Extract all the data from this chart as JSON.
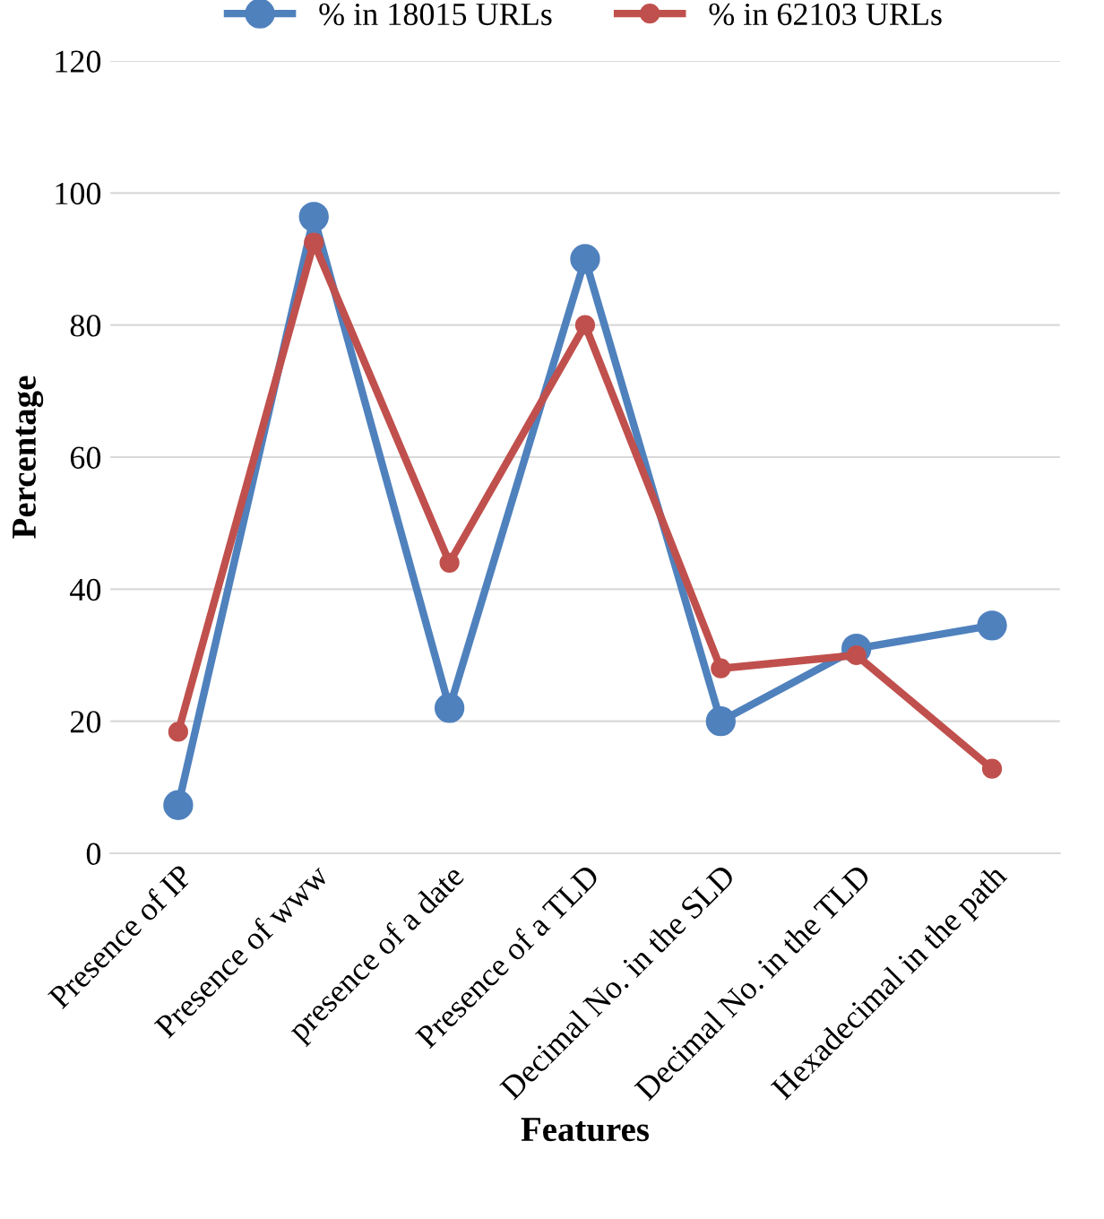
{
  "chart_data": {
    "type": "line",
    "xlabel": "Features",
    "ylabel": "Percentage",
    "categories": [
      "Presence of IP",
      "Presence of www",
      "presence of a date",
      "Presence of a TLD",
      "Decimal No. in the SLD",
      "Decimal No. in the TLD",
      "Hexadecimal in the path"
    ],
    "series": [
      {
        "name": "% in 18015 URLs",
        "color": "#4f81bd",
        "values": [
          7.3,
          96.4,
          22,
          90,
          20,
          31,
          34.5
        ]
      },
      {
        "name": "% in 62103 URLs",
        "color": "#c0504d",
        "values": [
          18.4,
          92.5,
          44,
          80,
          28,
          30,
          12.8
        ]
      }
    ],
    "ylim": [
      0,
      120
    ],
    "yticks": [
      0,
      20,
      40,
      60,
      80,
      100,
      120
    ],
    "grid": "y",
    "legend": "top",
    "marker": "circle",
    "line_style": "solid"
  }
}
